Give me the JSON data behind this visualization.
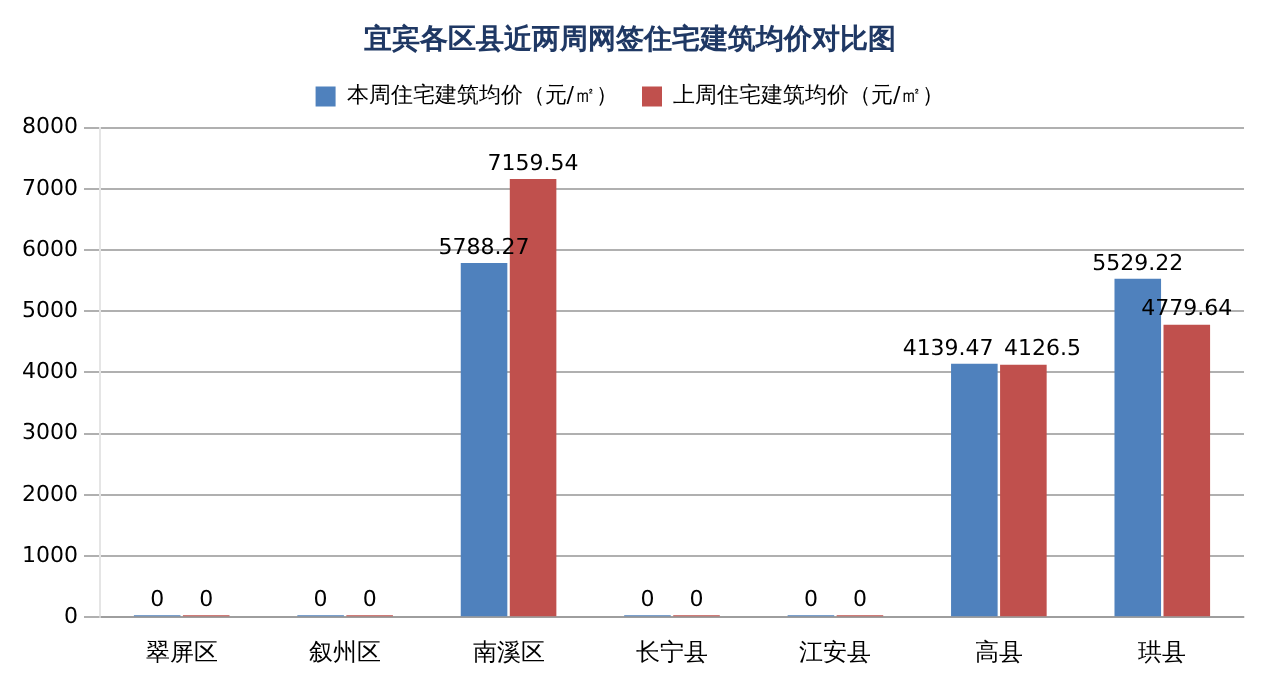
{
  "chart_data": {
    "type": "bar",
    "title": "宜宾各区县近两周网签住宅建筑均价对比图",
    "categories": [
      "翠屏区",
      "叙州区",
      "南溪区",
      "长宁县",
      "江安县",
      "高县",
      "珙县"
    ],
    "series": [
      {
        "name": "本周住宅建筑均价（元/㎡）",
        "color": "#4f81bd",
        "values": [
          0,
          0,
          5788.27,
          0,
          0,
          4139.47,
          5529.22
        ]
      },
      {
        "name": "上周住宅建筑均价（元/㎡）",
        "color": "#c0504d",
        "values": [
          0,
          0,
          7159.54,
          0,
          0,
          4126.5,
          4779.64
        ]
      }
    ],
    "ylim": [
      0,
      8000
    ],
    "yticks": [
      0,
      1000,
      2000,
      3000,
      4000,
      5000,
      6000,
      7000,
      8000
    ],
    "grid": "y",
    "legend": "top",
    "data_labels": true
  }
}
